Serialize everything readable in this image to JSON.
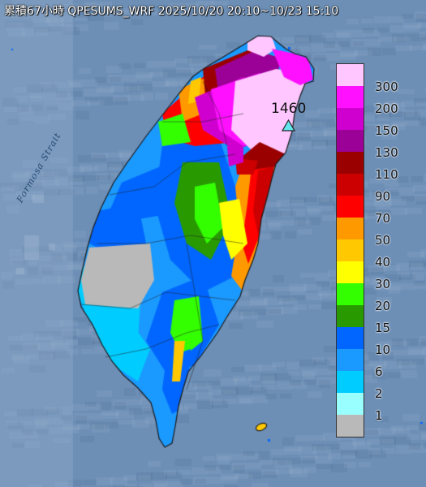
{
  "map": {
    "title": "累積67小時 QPESUMS_WRF 2025/10/20 20:10~10/23 15:10",
    "sea_label": "Formosa Strait",
    "max_value_label": "1460",
    "station_marker_color": "#63e6ee",
    "sea_color": "#6d8fb6",
    "land_no_data_color": "#b9b9b9"
  },
  "legend": {
    "items": [
      {
        "label": "300",
        "color": "#ffc6ff"
      },
      {
        "label": "200",
        "color": "#ff11ff"
      },
      {
        "label": "150",
        "color": "#cf00cf"
      },
      {
        "label": "130",
        "color": "#9b0097"
      },
      {
        "label": "110",
        "color": "#9a0000"
      },
      {
        "label": "90",
        "color": "#cc0000"
      },
      {
        "label": "70",
        "color": "#ff0000"
      },
      {
        "label": "50",
        "color": "#ff9900"
      },
      {
        "label": "40",
        "color": "#ffc800"
      },
      {
        "label": "30",
        "color": "#ffff00"
      },
      {
        "label": "20",
        "color": "#33ff00"
      },
      {
        "label": "15",
        "color": "#289a00"
      },
      {
        "label": "10",
        "color": "#0066ff"
      },
      {
        "label": "6",
        "color": "#1a99ff"
      },
      {
        "label": "2",
        "color": "#00ccff"
      },
      {
        "label": "1",
        "color": "#99ffff"
      },
      {
        "label": "",
        "color": "#b9b9b9"
      }
    ]
  }
}
